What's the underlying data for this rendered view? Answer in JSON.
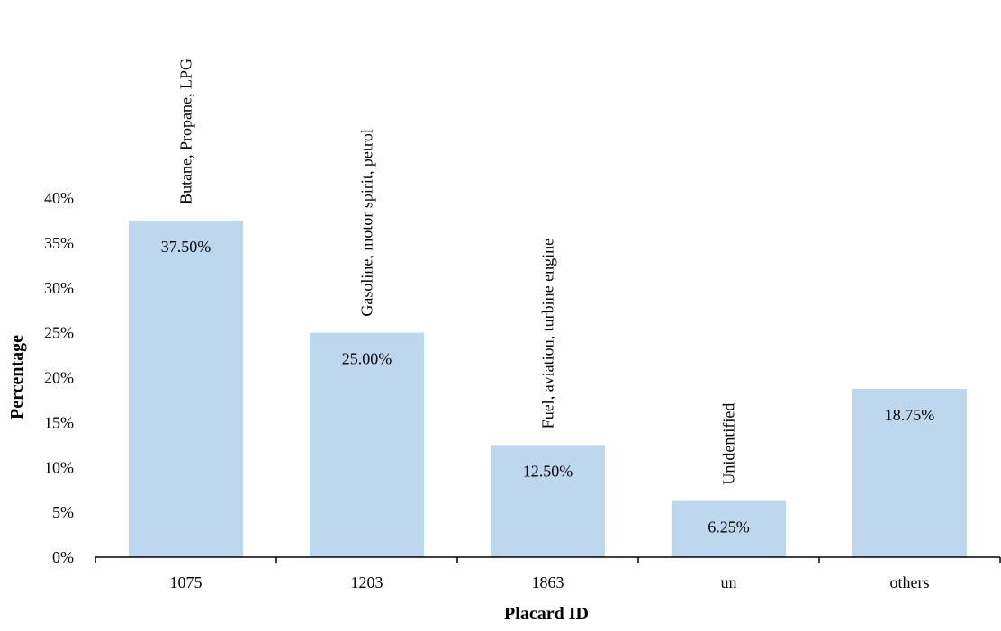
{
  "chart_data": {
    "type": "bar",
    "title": "",
    "xlabel": "Placard ID",
    "ylabel": "Percentage",
    "categories": [
      "1075",
      "1203",
      "1863",
      "un",
      "others"
    ],
    "values": [
      37.5,
      25.0,
      12.5,
      6.25,
      18.75
    ],
    "value_labels": [
      "37.50%",
      "25.00%",
      "12.50%",
      "6.25%",
      "18.75%"
    ],
    "annotations": [
      "Butane, Propane, LPG",
      "Gasoline, motor spirit, petrol",
      "Fuel, aviation, turbine engine",
      "Unidentified",
      ""
    ],
    "ylim": [
      0,
      40
    ],
    "y_ticks": [
      0,
      5,
      10,
      15,
      20,
      25,
      30,
      35,
      40
    ],
    "y_tick_labels": [
      "0%",
      "5%",
      "10%",
      "15%",
      "20%",
      "25%",
      "30%",
      "35%",
      "40%"
    ],
    "grid": false,
    "legend": "none",
    "bar_color": "#BDD7EE",
    "axis_color": "#000000"
  }
}
